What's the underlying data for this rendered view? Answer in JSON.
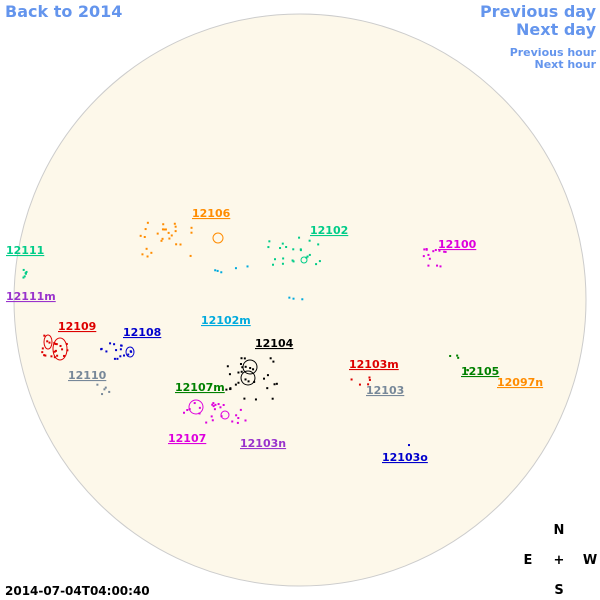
{
  "nav": {
    "back": "Back to 2014",
    "previous_day": "Previous day",
    "next_day": "Next day",
    "previous_hour": "Previous hour",
    "next_hour": "Next hour"
  },
  "regions": [
    "12111",
    "12111m",
    "12106",
    "12102",
    "12100",
    "12109",
    "12108",
    "12102m",
    "12104",
    "12110",
    "12107m",
    "12103m",
    "12103",
    "12105",
    "12097n",
    "12107",
    "12103n",
    "12103o"
  ],
  "compass": {
    "north": "N",
    "east": "E",
    "center": "+",
    "west": "W",
    "south": "S"
  },
  "timestamp": "2014-07-04T04:00:40"
}
